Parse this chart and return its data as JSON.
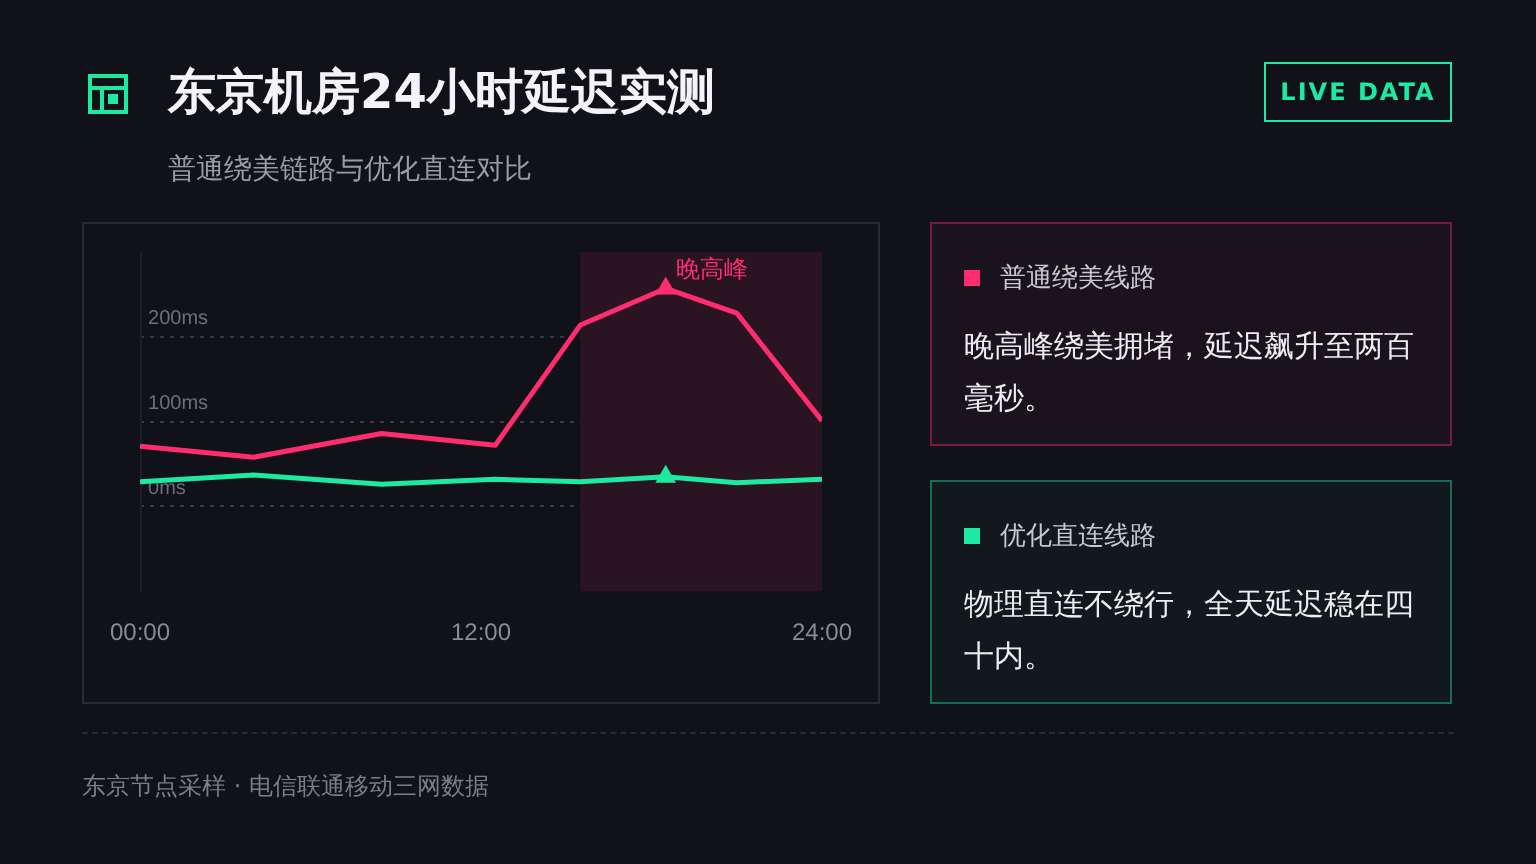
{
  "chart_data": {
    "type": "line",
    "title": "东京机房24小时延迟实测",
    "subtitle": "普通绕美链路与优化直连对比",
    "x": [
      0,
      4,
      8.5,
      12.5,
      15.5,
      18.5,
      21,
      24
    ],
    "series": [
      {
        "name": "普通绕美线路",
        "color": "#ff2d6f",
        "values": [
          71,
          58,
          86,
          72,
          214,
          257,
          228,
          101
        ]
      },
      {
        "name": "优化直连线路",
        "color": "#1de9a0",
        "values": [
          29,
          37,
          26,
          32,
          29,
          35,
          28,
          32
        ]
      },
      {
        "type": "scatter",
        "marker": "triangle",
        "color": "#ff2d6f",
        "x": [
          18.5
        ],
        "values": [
          257
        ]
      },
      {
        "type": "scatter",
        "marker": "triangle",
        "color": "#1de9a0",
        "x": [
          18.5
        ],
        "values": [
          35
        ]
      }
    ],
    "xlim": [
      0,
      24
    ],
    "xticks": [
      {
        "value": 0,
        "label": "00:00"
      },
      {
        "value": 12,
        "label": "12:00"
      },
      {
        "value": 24,
        "label": "24:00"
      }
    ],
    "ylim": [
      -100,
      300
    ],
    "yticks": [
      {
        "value": 0,
        "label": "0ms"
      },
      {
        "value": 100,
        "label": "100ms"
      },
      {
        "value": 200,
        "label": "200ms"
      }
    ],
    "grid": "y",
    "legend": "right",
    "marker": "none",
    "line_style": "solid",
    "bands": [
      {
        "axis": "x",
        "from": 15.5,
        "to": 24,
        "color": "#2a1422"
      }
    ],
    "annotations": [
      {
        "text": "晚高峰",
        "x": 18.5,
        "y": 257
      },
      "LIVE DATA",
      "晚高峰绕美拥堵，延迟飙升至两百毫秒。",
      "物理直连不绕行，全天延迟稳在四十内。",
      "东京节点采样 · 电信联通移动三网数据"
    ]
  }
}
